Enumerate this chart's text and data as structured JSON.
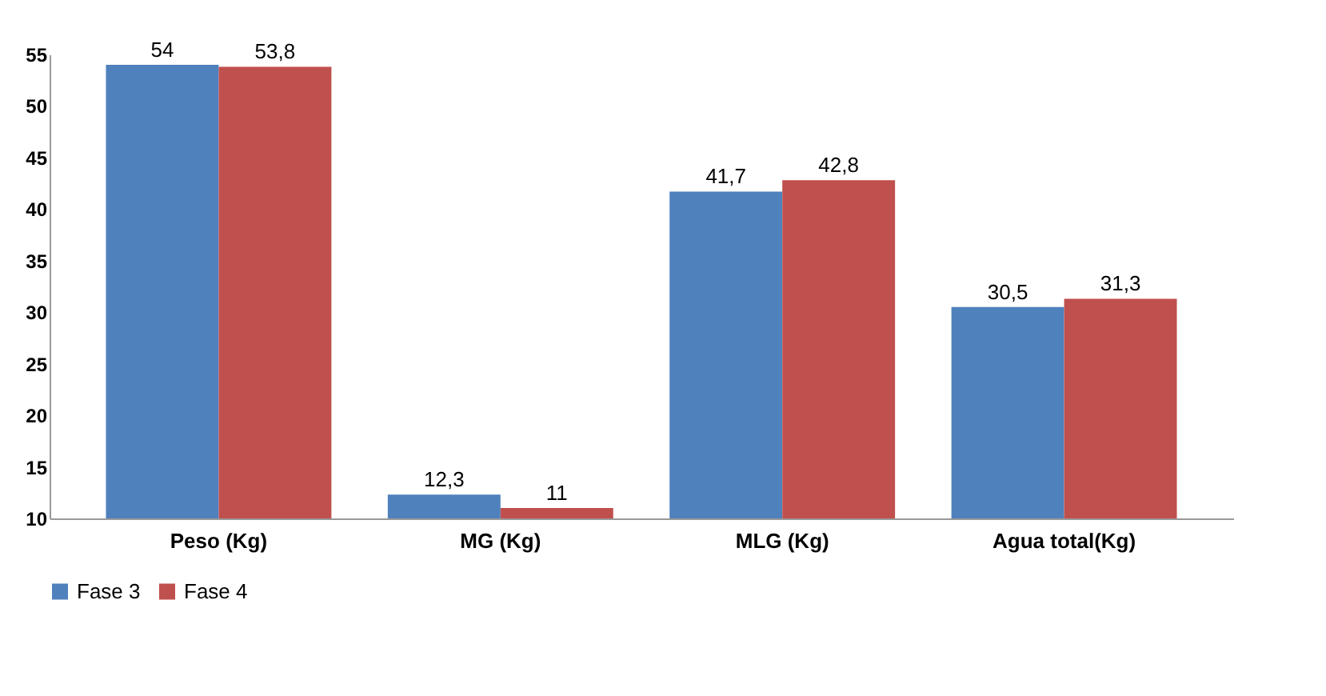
{
  "chart_data": {
    "type": "bar",
    "categories": [
      "Peso (Kg)",
      "MG (Kg)",
      "MLG (Kg)",
      "Agua total(Kg)"
    ],
    "series": [
      {
        "name": "Fase 3",
        "color": "#4f81bd",
        "values": [
          54,
          12.3,
          41.7,
          30.5
        ],
        "value_labels": [
          "54",
          "12,3",
          "41,7",
          "30,5"
        ]
      },
      {
        "name": "Fase 4",
        "color": "#c0504d",
        "values": [
          53.8,
          11,
          42.8,
          31.3
        ],
        "value_labels": [
          "53,8",
          "11",
          "42,8",
          "31,3"
        ]
      }
    ],
    "ylim": [
      10,
      55
    ],
    "yticks": [
      10,
      15,
      20,
      25,
      30,
      35,
      40,
      45,
      50,
      55
    ],
    "legend": "bottom"
  }
}
